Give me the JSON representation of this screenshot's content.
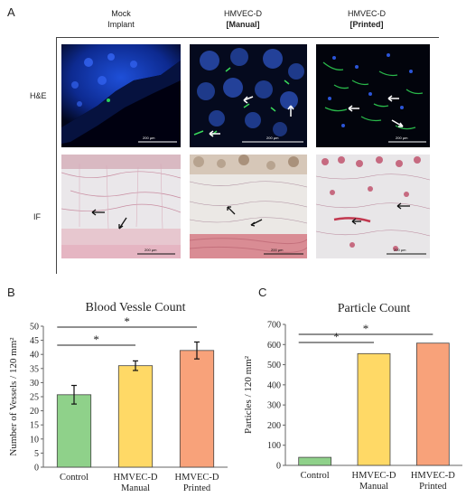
{
  "panel_labels": {
    "a": "A",
    "b": "B",
    "c": "C"
  },
  "figure_a": {
    "columns": [
      {
        "line1": "Mock",
        "line2": "Implant",
        "bold2": false
      },
      {
        "line1": "HMVEC-D",
        "line2": "[Manual]",
        "bold2": true
      },
      {
        "line1": "HMVEC-D",
        "line2": "[Printed]",
        "bold2": true
      }
    ],
    "rows": [
      "H&E",
      "IF"
    ],
    "scale_label": "200 µm"
  },
  "chart_data": [
    {
      "type": "bar",
      "title": "Blood Vessle Count",
      "ylabel": "Number of Vessels / 120 mm²",
      "ylim": [
        0,
        50
      ],
      "yticks": [
        0,
        5,
        10,
        15,
        20,
        25,
        30,
        35,
        40,
        45,
        50
      ],
      "categories": [
        [
          "Control"
        ],
        [
          "HMVEC-D",
          "Manual"
        ],
        [
          "HMVEC-D",
          "Printed"
        ]
      ],
      "values": [
        25.7,
        36.0,
        41.4
      ],
      "errors": [
        3.3,
        1.7,
        3.0
      ],
      "colors": [
        "#8fd18a",
        "#ffd966",
        "#f8a27a"
      ],
      "significance": [
        {
          "from": 0,
          "to": 1,
          "label": "*"
        },
        {
          "from": 0,
          "to": 2,
          "label": "*"
        }
      ]
    },
    {
      "type": "bar",
      "title": "Particle Count",
      "ylabel": "Particles / 120 mm²",
      "ylim": [
        0,
        700
      ],
      "yticks": [
        0,
        100,
        200,
        300,
        400,
        500,
        600,
        700
      ],
      "categories": [
        [
          "Control"
        ],
        [
          "HMVEC-D",
          "Manual"
        ],
        [
          "HMVEC-D",
          "Printed"
        ]
      ],
      "values": [
        40,
        555,
        607
      ],
      "errors": [],
      "colors": [
        "#8fd18a",
        "#ffd966",
        "#f8a27a"
      ],
      "significance": [
        {
          "from": 0,
          "to": 1,
          "label": "*"
        },
        {
          "from": 0,
          "to": 2,
          "label": "*"
        }
      ]
    }
  ]
}
